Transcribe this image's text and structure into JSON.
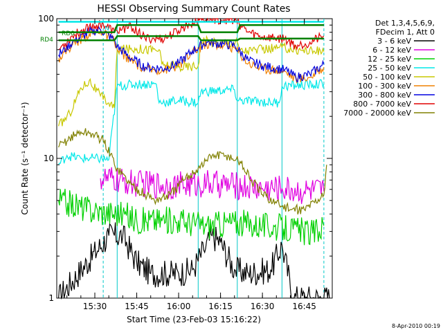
{
  "chart_data": {
    "type": "line",
    "title": "HESSI Observing Summary Count Rates",
    "xlabel": "Start Time (23-Feb-03 15:16:22)",
    "ylabel": "Count Rate (s⁻¹ detector⁻¹)",
    "yscale": "log",
    "ylim": [
      1,
      100
    ],
    "xlim": [
      "15:16:22",
      "16:55:00"
    ],
    "x_ticks": [
      "15:30",
      "15:45",
      "16:00",
      "16:15",
      "16:30",
      "16:45"
    ],
    "y_ticks": [
      "1",
      "10",
      "100"
    ],
    "legend_header": [
      "Det 1,3,4,5,6,9,",
      "FDecim 1, Att 0"
    ],
    "legend_position": "right",
    "grid": false,
    "annotations": [
      {
        "text": "RD0",
        "color": "#008000"
      },
      {
        "text": "RD4",
        "color": "#008000"
      },
      {
        "text": "N",
        "color": "#00c8c8"
      }
    ],
    "footer": "8-Apr-2010 00:19",
    "series": [
      {
        "name": "3 - 6 keV",
        "color": "#000000",
        "points": [
          [
            "15:17",
            1
          ],
          [
            "15:35",
            2.8
          ],
          [
            "15:40",
            2.8
          ],
          [
            "15:45",
            1.8
          ],
          [
            "15:50",
            1.5
          ],
          [
            "16:00",
            1.5
          ],
          [
            "16:05",
            1.6
          ],
          [
            "16:09",
            2.2
          ],
          [
            "16:12",
            2.8
          ],
          [
            "16:15",
            2.5
          ],
          [
            "16:20",
            1.6
          ],
          [
            "16:25",
            1.5
          ],
          [
            "16:33",
            1.6
          ],
          [
            "16:37",
            2.4
          ],
          [
            "16:41",
            1.0
          ],
          [
            "16:54",
            1.0
          ]
        ]
      },
      {
        "name": "6 - 12 keV",
        "color": "#e000e0",
        "points": [
          [
            "15:32",
            7.2
          ],
          [
            "15:40",
            6.8
          ],
          [
            "15:45",
            6.6
          ],
          [
            "16:00",
            6.4
          ],
          [
            "16:10",
            6.6
          ],
          [
            "16:20",
            6.4
          ],
          [
            "16:30",
            6.1
          ],
          [
            "16:37",
            6.1
          ],
          [
            "16:45",
            5.8
          ],
          [
            "16:52",
            5.8
          ]
        ]
      },
      {
        "name": "12 - 25 keV",
        "color": "#00d000",
        "points": [
          [
            "15:17",
            5.0
          ],
          [
            "15:30",
            4.2
          ],
          [
            "15:40",
            4.0
          ],
          [
            "15:45",
            3.6
          ],
          [
            "16:00",
            3.6
          ],
          [
            "16:10",
            3.3
          ],
          [
            "16:20",
            3.5
          ],
          [
            "16:30",
            3.3
          ],
          [
            "16:41",
            3.1
          ],
          [
            "16:48",
            2.9
          ],
          [
            "16:52",
            3.3
          ]
        ]
      },
      {
        "name": "25 - 50 keV",
        "color": "#00e8e8",
        "points": [
          [
            "15:17",
            9.0
          ],
          [
            "15:20",
            10.5
          ],
          [
            "15:25",
            10.0
          ],
          [
            "15:30",
            10.0
          ],
          [
            "15:35",
            9.8
          ],
          [
            "15:38",
            33
          ],
          [
            "15:45",
            34
          ],
          [
            "15:52",
            34
          ],
          [
            "15:53",
            25
          ],
          [
            "16:00",
            26
          ],
          [
            "16:07",
            25
          ],
          [
            "16:08",
            30
          ],
          [
            "16:20",
            31
          ],
          [
            "16:21",
            26
          ],
          [
            "16:36",
            25
          ],
          [
            "16:37",
            33
          ],
          [
            "16:52",
            34
          ]
        ]
      },
      {
        "name": "50 - 100 keV",
        "color": "#c8c800",
        "points": [
          [
            "15:17",
            17
          ],
          [
            "15:21",
            21
          ],
          [
            "15:25",
            32
          ],
          [
            "15:28",
            36
          ],
          [
            "15:32",
            28
          ],
          [
            "15:37",
            23
          ],
          [
            "15:38",
            60
          ],
          [
            "15:45",
            61
          ],
          [
            "15:53",
            60
          ],
          [
            "15:54",
            47
          ],
          [
            "16:00",
            45
          ],
          [
            "16:07",
            46
          ],
          [
            "16:08",
            70
          ],
          [
            "16:15",
            67
          ],
          [
            "16:21",
            68
          ],
          [
            "16:22",
            59
          ],
          [
            "16:30",
            60
          ],
          [
            "16:37",
            62
          ],
          [
            "16:42",
            60
          ],
          [
            "16:52",
            58
          ]
        ]
      },
      {
        "name": "100 - 300 keV",
        "color": "#f08000",
        "points": [
          [
            "15:17",
            52
          ],
          [
            "15:22",
            65
          ],
          [
            "15:28",
            78
          ],
          [
            "15:32",
            82
          ],
          [
            "15:37",
            68
          ],
          [
            "15:38",
            60
          ],
          [
            "15:43",
            50
          ],
          [
            "15:48",
            43
          ],
          [
            "15:55",
            43
          ],
          [
            "16:00",
            46
          ],
          [
            "16:05",
            57
          ],
          [
            "16:10",
            66
          ],
          [
            "16:16",
            64
          ],
          [
            "16:20",
            62
          ],
          [
            "16:25",
            48
          ],
          [
            "16:30",
            44
          ],
          [
            "16:35",
            43
          ],
          [
            "16:38",
            42
          ],
          [
            "16:42",
            37
          ],
          [
            "16:47",
            38
          ],
          [
            "16:52",
            45
          ]
        ]
      },
      {
        "name": "300 - 800 keV",
        "color": "#0000e0",
        "points": [
          [
            "15:17",
            55
          ],
          [
            "15:22",
            68
          ],
          [
            "15:28",
            80
          ],
          [
            "15:32",
            84
          ],
          [
            "15:37",
            70
          ],
          [
            "15:38",
            63
          ],
          [
            "15:43",
            52
          ],
          [
            "15:48",
            45
          ],
          [
            "15:55",
            44
          ],
          [
            "16:00",
            48
          ],
          [
            "16:05",
            59
          ],
          [
            "16:10",
            68
          ],
          [
            "16:16",
            66
          ],
          [
            "16:20",
            64
          ],
          [
            "16:25",
            50
          ],
          [
            "16:30",
            46
          ],
          [
            "16:35",
            44
          ],
          [
            "16:38",
            43
          ],
          [
            "16:42",
            38
          ],
          [
            "16:47",
            40
          ],
          [
            "16:52",
            47
          ]
        ]
      },
      {
        "name": "800 - 7000 keV",
        "color": "#e00000",
        "points": [
          [
            "15:17",
            60
          ],
          [
            "15:22",
            75
          ],
          [
            "15:28",
            88
          ],
          [
            "15:33",
            92
          ],
          [
            "15:37",
            80
          ],
          [
            "15:38",
            82
          ],
          [
            "15:43",
            88
          ],
          [
            "15:48",
            72
          ],
          [
            "15:55",
            72
          ],
          [
            "16:00",
            82
          ],
          [
            "16:05",
            95
          ],
          [
            "16:08",
            100
          ],
          [
            "16:20",
            98
          ],
          [
            "16:25",
            80
          ],
          [
            "16:30",
            74
          ],
          [
            "16:38",
            72
          ],
          [
            "16:42",
            64
          ],
          [
            "16:47",
            68
          ],
          [
            "16:52",
            75
          ]
        ]
      },
      {
        "name": "7000 - 20000 keV",
        "color": "#808000",
        "points": [
          [
            "15:17",
            12
          ],
          [
            "15:21",
            14
          ],
          [
            "15:25",
            15.5
          ],
          [
            "15:29",
            15
          ],
          [
            "15:33",
            13.5
          ],
          [
            "15:38",
            8.5
          ],
          [
            "15:43",
            6.5
          ],
          [
            "15:48",
            5.5
          ],
          [
            "15:52",
            5.0
          ],
          [
            "15:57",
            5.5
          ],
          [
            "16:02",
            7.0
          ],
          [
            "16:07",
            8.5
          ],
          [
            "16:12",
            10.5
          ],
          [
            "16:17",
            10.5
          ],
          [
            "16:22",
            9.5
          ],
          [
            "16:26",
            7.0
          ],
          [
            "16:30",
            5.5
          ],
          [
            "16:35",
            4.8
          ],
          [
            "16:40",
            4.3
          ],
          [
            "16:45",
            4.3
          ],
          [
            "16:52",
            5.5
          ],
          [
            "16:53",
            9.0
          ]
        ]
      },
      {
        "name": "",
        "color": "#008000",
        "points": [
          [
            "15:17",
            80
          ],
          [
            "15:37",
            80
          ],
          [
            "15:38",
            90
          ],
          [
            "16:07",
            90
          ],
          [
            "16:08",
            80
          ],
          [
            "16:21",
            80
          ],
          [
            "16:22",
            90
          ],
          [
            "16:52",
            90
          ]
        ]
      },
      {
        "name": "",
        "color": "#008000",
        "points": [
          [
            "15:17",
            70
          ],
          [
            "15:37",
            70
          ],
          [
            "15:38",
            75
          ],
          [
            "16:07",
            75
          ],
          [
            "16:08",
            70
          ],
          [
            "16:21",
            70
          ],
          [
            "16:22",
            72
          ],
          [
            "16:52",
            72
          ]
        ]
      },
      {
        "name": "",
        "color": "#00e8e8",
        "points": [
          [
            "15:17",
            95
          ],
          [
            "15:37",
            95
          ],
          [
            "16:37",
            95
          ],
          [
            "16:52",
            95
          ]
        ]
      }
    ],
    "vertical_markers": [
      {
        "time": "15:33",
        "style": "dashed",
        "color": "#00c8c8"
      },
      {
        "time": "15:38",
        "style": "solid",
        "color": "#00c8c8"
      },
      {
        "time": "16:07",
        "style": "solid",
        "color": "#00c8c8"
      },
      {
        "time": "16:21",
        "style": "solid",
        "color": "#00c8c8"
      },
      {
        "time": "16:37",
        "style": "solid",
        "color": "#00c8c8"
      },
      {
        "time": "16:52",
        "style": "dashed",
        "color": "#00c8c8"
      }
    ]
  }
}
